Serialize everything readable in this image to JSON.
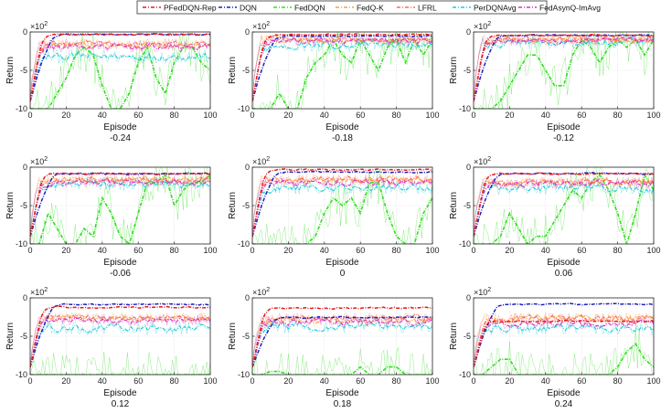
{
  "chart_data": {
    "type": "line",
    "layout": "3x3 small multiples",
    "legend": {
      "placement": "top-center",
      "entries": [
        {
          "name": "PFedDQN-Rep",
          "color": "#e41a1c",
          "dash": "dashdot"
        },
        {
          "name": "DQN",
          "color": "#1f1fbf",
          "dash": "dashdot"
        },
        {
          "name": "FedDQN",
          "color": "#33dd22",
          "dash": "dashdot"
        },
        {
          "name": "FedQ-K",
          "color": "#f5a142",
          "dash": "dashdot"
        },
        {
          "name": "LFRL",
          "color": "#ff6a55",
          "dash": "dashdot"
        },
        {
          "name": "PerDQNAvg",
          "color": "#1fc9d6",
          "dash": "dashdot"
        },
        {
          "name": "FedAsynQ-ImAvg",
          "color": "#d633c4",
          "dash": "dashdot"
        }
      ]
    },
    "shared": {
      "xlabel": "Episode",
      "ylabel": "Return",
      "xlim": [
        0,
        100
      ],
      "ylim": [
        -10,
        0
      ],
      "xticks": [
        0,
        20,
        40,
        60,
        80,
        100
      ],
      "yticks": [
        -10,
        -5,
        0
      ],
      "exponent_label": "×10",
      "exponent_power": "2",
      "grid": true
    },
    "panels": [
      {
        "subtitle": "-0.24",
        "show_ylabel": true,
        "final": {
          "PFedDQN-Rep": -0.3,
          "DQN": -0.3,
          "FedDQN": -5.0,
          "FedQ-K": -1.6,
          "LFRL": -1.4,
          "PerDQNAvg": -3.0,
          "FedAsynQ-ImAvg": -1.8
        },
        "feddqn_profile": [
          -10,
          -10,
          -10,
          -8,
          -6,
          -3,
          -2,
          -3,
          -7,
          -10,
          -10,
          -8,
          -4,
          -2,
          -6,
          -8,
          -4,
          -2,
          -2,
          -4,
          -5
        ]
      },
      {
        "subtitle": "-0.18",
        "show_ylabel": true,
        "final": {
          "PFedDQN-Rep": -0.3,
          "DQN": -0.5,
          "FedDQN": -1.5,
          "FedQ-K": -0.8,
          "LFRL": -0.8,
          "PerDQNAvg": -1.5,
          "FedAsynQ-ImAvg": -1.0
        },
        "feddqn_profile": [
          -10,
          -10,
          -10,
          -8,
          -10,
          -10,
          -6,
          -4,
          -3,
          -1,
          -3,
          -4,
          -1,
          -3,
          -5,
          -2,
          -1,
          -4,
          -1,
          -3,
          -1
        ]
      },
      {
        "subtitle": "-0.12",
        "show_ylabel": true,
        "final": {
          "PFedDQN-Rep": -0.4,
          "DQN": -0.4,
          "FedDQN": -1.5,
          "FedQ-K": -0.8,
          "LFRL": -0.8,
          "PerDQNAvg": -1.2,
          "FedAsynQ-ImAvg": -1.0
        },
        "feddqn_profile": [
          -10,
          -10,
          -10,
          -9,
          -7,
          -5,
          -3,
          -3,
          -5,
          -7,
          -7,
          -3,
          -1,
          -2,
          -4,
          -2,
          -1,
          -2,
          -1,
          -3,
          -1
        ]
      },
      {
        "subtitle": "-0.06",
        "show_ylabel": true,
        "final": {
          "PFedDQN-Rep": -0.8,
          "DQN": -0.8,
          "FedDQN": -1.0,
          "FedQ-K": -1.5,
          "LFRL": -1.5,
          "PerDQNAvg": -2.0,
          "FedAsynQ-ImAvg": -1.8
        },
        "feddqn_profile": [
          -10,
          -10,
          -6,
          -8,
          -10,
          -10,
          -8,
          -9,
          -4,
          -6,
          -9,
          -10,
          -6,
          -2,
          -2,
          -1,
          -5,
          -3,
          -2,
          -2,
          -1
        ]
      },
      {
        "subtitle": "0",
        "show_ylabel": true,
        "final": {
          "PFedDQN-Rep": -0.3,
          "DQN": -0.6,
          "FedDQN": -4.0,
          "FedQ-K": -1.5,
          "LFRL": -1.5,
          "PerDQNAvg": -2.5,
          "FedAsynQ-ImAvg": -1.8
        },
        "feddqn_profile": [
          -10,
          -10,
          -10,
          -10,
          -10,
          -10,
          -10,
          -9,
          -6,
          -4,
          -5,
          -4,
          -6,
          -2,
          -2,
          -6,
          -9,
          -10,
          -10,
          -6,
          -4
        ]
      },
      {
        "subtitle": "0.06",
        "show_ylabel": true,
        "final": {
          "PFedDQN-Rep": -0.8,
          "DQN": -0.8,
          "FedDQN": -3.0,
          "FedQ-K": -1.8,
          "LFRL": -1.8,
          "PerDQNAvg": -2.5,
          "FedAsynQ-ImAvg": -2.0
        },
        "feddqn_profile": [
          -10,
          -10,
          -10,
          -9,
          -6,
          -8,
          -10,
          -9,
          -9,
          -7,
          -5,
          -3,
          -4,
          -2,
          -1,
          -3,
          -6,
          -10,
          -6,
          -1,
          -3
        ]
      },
      {
        "subtitle": "0.12",
        "show_ylabel": true,
        "final": {
          "PFedDQN-Rep": -1.2,
          "DQN": -0.8,
          "FedDQN": -10.0,
          "FedQ-K": -2.5,
          "LFRL": -2.5,
          "PerDQNAvg": -3.8,
          "FedAsynQ-ImAvg": -2.8
        },
        "feddqn_profile": [
          -10,
          -10,
          -10,
          -10,
          -10,
          -10,
          -10,
          -10,
          -10,
          -10,
          -10,
          -10,
          -10,
          -10,
          -10,
          -10,
          -10,
          -10,
          -10,
          -10,
          -10
        ]
      },
      {
        "subtitle": "0.18",
        "show_ylabel": true,
        "final": {
          "PFedDQN-Rep": -1.3,
          "DQN": -2.5,
          "FedDQN": -10.0,
          "FedQ-K": -2.8,
          "LFRL": -2.5,
          "PerDQNAvg": -3.5,
          "FedAsynQ-ImAvg": -3.0
        },
        "feddqn_profile": [
          -10,
          -10,
          -9.6,
          -9.6,
          -10,
          -10,
          -10,
          -10,
          -10,
          -10,
          -10,
          -10,
          -9,
          -10,
          -10,
          -9,
          -9,
          -10,
          -10,
          -10,
          -10
        ]
      },
      {
        "subtitle": "0.24",
        "show_ylabel": true,
        "final": {
          "PFedDQN-Rep": -3.0,
          "DQN": -0.8,
          "FedDQN": -9.5,
          "FedQ-K": -2.5,
          "LFRL": -2.5,
          "PerDQNAvg": -3.8,
          "FedAsynQ-ImAvg": -3.2
        },
        "feddqn_profile": [
          -10,
          -10,
          -9,
          -8,
          -8,
          -10,
          -10,
          -10,
          -10,
          -10,
          -10,
          -10,
          -10,
          -10,
          -10,
          -10,
          -9,
          -7,
          -6,
          -8,
          -9
        ]
      }
    ]
  }
}
